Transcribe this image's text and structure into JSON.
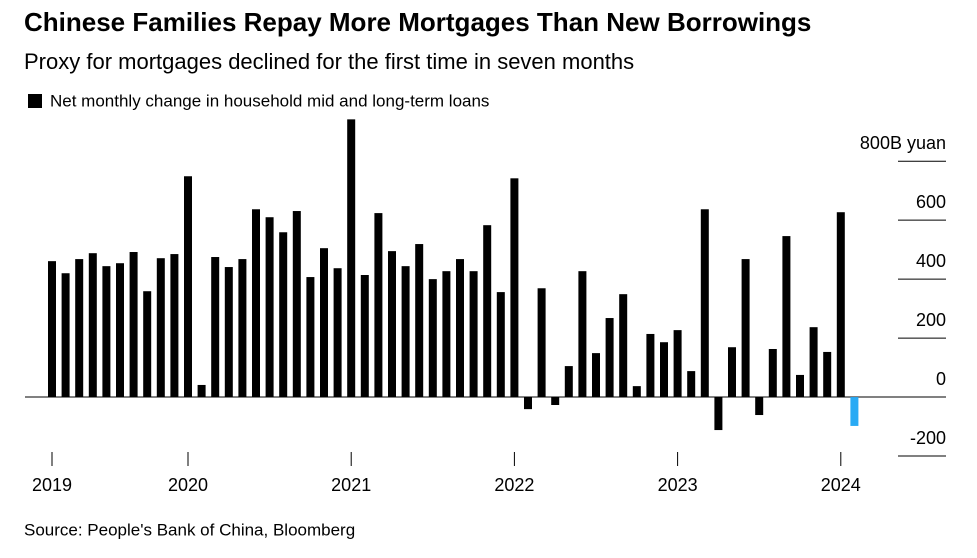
{
  "chart_data": {
    "type": "bar",
    "title": "Chinese Families Repay More Mortgages Than New Borrowings",
    "subtitle": "Proxy for mortgages declined for the first time in seven months",
    "source": "Source: People's Bank of China, Bloomberg",
    "categories": [
      "2019",
      null,
      null,
      null,
      null,
      null,
      null,
      null,
      null,
      null,
      "2020",
      null,
      null,
      null,
      null,
      null,
      null,
      null,
      null,
      null,
      null,
      null,
      "2021",
      null,
      null,
      null,
      null,
      null,
      null,
      null,
      null,
      null,
      null,
      null,
      "2022",
      null,
      null,
      null,
      null,
      null,
      null,
      null,
      null,
      null,
      null,
      null,
      "2023",
      null,
      null,
      null,
      null,
      null,
      null,
      null,
      null,
      null,
      null,
      null,
      "2024",
      null
    ],
    "series": [
      {
        "name": "Net monthly change in household mid and long-term loans",
        "color": "#000000",
        "values": [
          461,
          420,
          468,
          488,
          444,
          454,
          492,
          359,
          471,
          485,
          749,
          41,
          475,
          441,
          468,
          637,
          610,
          559,
          631,
          407,
          505,
          437,
          942,
          414,
          624,
          495,
          444,
          519,
          400,
          427,
          468,
          427,
          583,
          356,
          742,
          -41,
          369,
          -27,
          105,
          427,
          149,
          268,
          349,
          37,
          214,
          186,
          227,
          88,
          637,
          -112,
          169,
          468,
          -61,
          163,
          546,
          75,
          237,
          153,
          627,
          -98
        ],
        "colors": [
          "#000000",
          "#000000",
          "#000000",
          "#000000",
          "#000000",
          "#000000",
          "#000000",
          "#000000",
          "#000000",
          "#000000",
          "#000000",
          "#000000",
          "#000000",
          "#000000",
          "#000000",
          "#000000",
          "#000000",
          "#000000",
          "#000000",
          "#000000",
          "#000000",
          "#000000",
          "#000000",
          "#000000",
          "#000000",
          "#000000",
          "#000000",
          "#000000",
          "#000000",
          "#000000",
          "#000000",
          "#000000",
          "#000000",
          "#000000",
          "#000000",
          "#000000",
          "#000000",
          "#000000",
          "#000000",
          "#000000",
          "#000000",
          "#000000",
          "#000000",
          "#000000",
          "#000000",
          "#000000",
          "#000000",
          "#000000",
          "#000000",
          "#000000",
          "#000000",
          "#000000",
          "#000000",
          "#000000",
          "#000000",
          "#000000",
          "#000000",
          "#000000",
          "#000000",
          "#29aaf4"
        ]
      }
    ],
    "ylim": [
      -200,
      950
    ],
    "yticks": [
      -200,
      0,
      200,
      400,
      600,
      {
        "value": 800,
        "label": "800B yuan"
      }
    ]
  }
}
